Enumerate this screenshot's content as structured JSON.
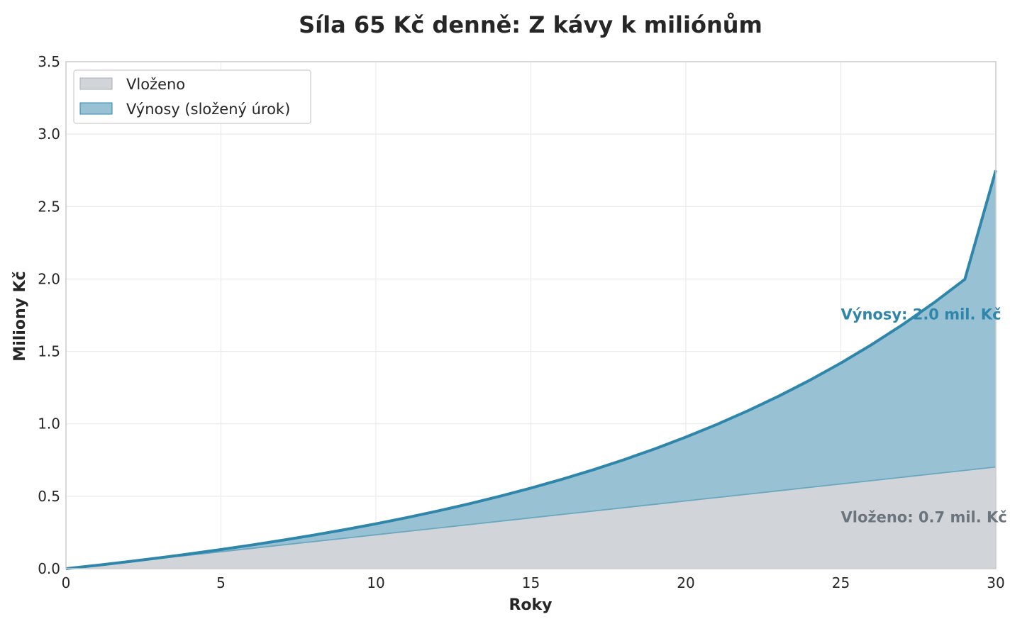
{
  "chart_data": {
    "type": "area",
    "title": "Síla 65 Kč denně: Z kávy k miliónům",
    "xlabel": "Roky",
    "ylabel": "Miliony Kč",
    "xlim": [
      0,
      30
    ],
    "ylim": [
      0,
      3.5
    ],
    "x_ticks": [
      0,
      5,
      10,
      15,
      20,
      25,
      30
    ],
    "x_tick_labels": [
      "0",
      "5",
      "10",
      "15",
      "20",
      "25",
      "30"
    ],
    "y_ticks": [
      0,
      0.5,
      1.0,
      1.5,
      2.0,
      2.5,
      3.0,
      3.5
    ],
    "y_tick_labels": [
      "0.0",
      "0.5",
      "1.0",
      "1.5",
      "2.0",
      "2.5",
      "3.0",
      "3.5"
    ],
    "grid": true,
    "legend_position": "top-left",
    "x": [
      0,
      1,
      2,
      3,
      4,
      5,
      6,
      7,
      8,
      9,
      10,
      11,
      12,
      13,
      14,
      15,
      16,
      17,
      18,
      19,
      20,
      21,
      22,
      23,
      24,
      25,
      26,
      27,
      28,
      29,
      30
    ],
    "series": [
      {
        "name": "Vloženo",
        "color": "#d1d5d9",
        "line_color": "#6aa7c0",
        "values": [
          0,
          0.0234,
          0.0468,
          0.0702,
          0.0936,
          0.117,
          0.1404,
          0.1638,
          0.1872,
          0.2106,
          0.234,
          0.2574,
          0.2808,
          0.3042,
          0.3276,
          0.351,
          0.3744,
          0.3978,
          0.4212,
          0.4446,
          0.468,
          0.4914,
          0.5148,
          0.5382,
          0.5616,
          0.585,
          0.6084,
          0.6318,
          0.6552,
          0.6786,
          0.702
        ]
      },
      {
        "name": "Výnosy (složený úrok)",
        "color": "#98c1d3",
        "line_color": "#2e86ab",
        "values": [
          0,
          0.0,
          0.0015,
          0.0045,
          0.009,
          0.0152,
          0.0232,
          0.0331,
          0.045,
          0.0592,
          0.0759,
          0.0953,
          0.1177,
          0.1433,
          0.1724,
          0.2054,
          0.2426,
          0.2843,
          0.3309,
          0.3828,
          0.4405,
          0.5045,
          0.5753,
          0.6535,
          0.7397,
          0.8347,
          0.9392,
          1.0541,
          1.1803,
          1.3188,
          2.048
        ]
      }
    ],
    "total_values": [
      0,
      0.0234,
      0.0483,
      0.0747,
      0.1026,
      0.1322,
      0.1636,
      0.1969,
      0.2322,
      0.2698,
      0.3099,
      0.3527,
      0.3985,
      0.4475,
      0.5,
      0.5564,
      0.617,
      0.6821,
      0.7521,
      0.8274,
      0.9085,
      0.9959,
      1.0901,
      1.1917,
      1.3013,
      1.4197,
      1.5476,
      1.6859,
      1.8355,
      1.9974,
      2.75
    ],
    "annotations": [
      {
        "text": "Výnosy: 2.0 mil. Kč",
        "x": 25,
        "y": 1.75,
        "color": "#2e86ab"
      },
      {
        "text": "Vloženo: 0.7 mil. Kč",
        "x": 25,
        "y": 0.35,
        "color": "#6c757d"
      }
    ]
  }
}
